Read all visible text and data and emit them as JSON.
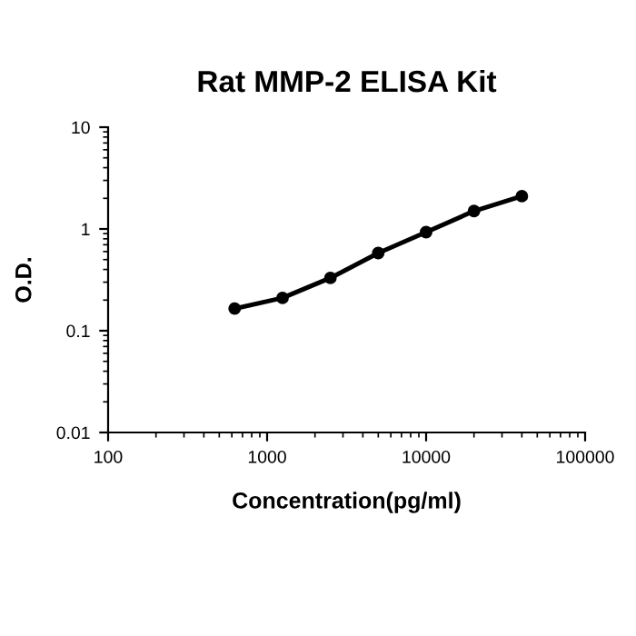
{
  "chart_data": {
    "type": "line",
    "title": "Rat MMP-2 ELISA Kit",
    "xlabel": "Concentration(pg/ml)",
    "ylabel": "O.D.",
    "x": [
      625,
      1250,
      2500,
      5000,
      10000,
      20000,
      40000
    ],
    "series": [
      {
        "color": "#000000",
        "values": [
          0.165,
          0.21,
          0.33,
          0.58,
          0.93,
          1.5,
          2.1
        ]
      }
    ],
    "log": "xy",
    "xlim": [
      100,
      100000
    ],
    "ylim": [
      0.01,
      10
    ],
    "xticks": [
      100,
      1000,
      10000,
      100000
    ],
    "yticks": [
      0.01,
      0.1,
      1,
      10
    ],
    "marker": "circle",
    "line_style": "solid",
    "grid": false,
    "legend": false
  }
}
